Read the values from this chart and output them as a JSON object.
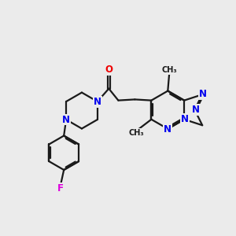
{
  "bg_color": "#ebebeb",
  "bond_color": "#1a1a1a",
  "bond_width": 1.6,
  "atom_colors": {
    "N": "#0000ee",
    "O": "#ee0000",
    "F": "#dd00dd",
    "C": "#1a1a1a"
  },
  "font_size": 8.5,
  "font_size_small": 7.5
}
